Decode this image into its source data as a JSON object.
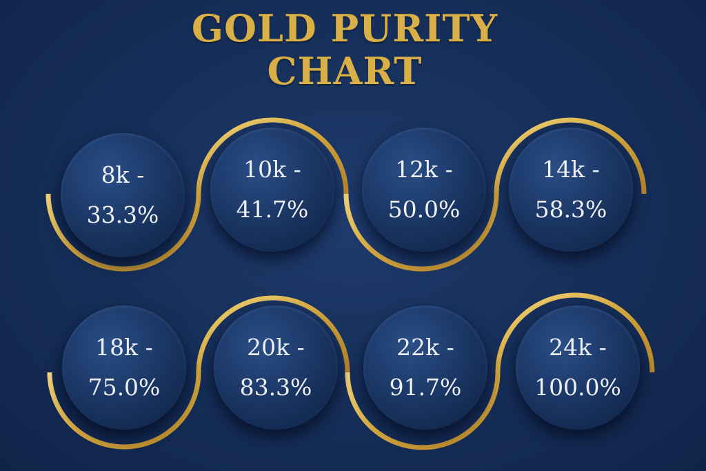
{
  "title": {
    "line1": "GOLD PURITY",
    "line2": "CHART"
  },
  "colors": {
    "background": "#17305b",
    "gold": "#d9b048",
    "circle": "#1d3a6a",
    "text": "#eef1f8"
  },
  "rows": [
    [
      {
        "karat": "8k -",
        "purity": "33.3%"
      },
      {
        "karat": "10k -",
        "purity": "41.7%"
      },
      {
        "karat": "12k -",
        "purity": "50.0%"
      },
      {
        "karat": "14k -",
        "purity": "58.3%"
      }
    ],
    [
      {
        "karat": "18k -",
        "purity": "75.0%"
      },
      {
        "karat": "20k -",
        "purity": "83.3%"
      },
      {
        "karat": "22k -",
        "purity": "91.7%"
      },
      {
        "karat": "24k -",
        "purity": "100.0%"
      }
    ]
  ]
}
